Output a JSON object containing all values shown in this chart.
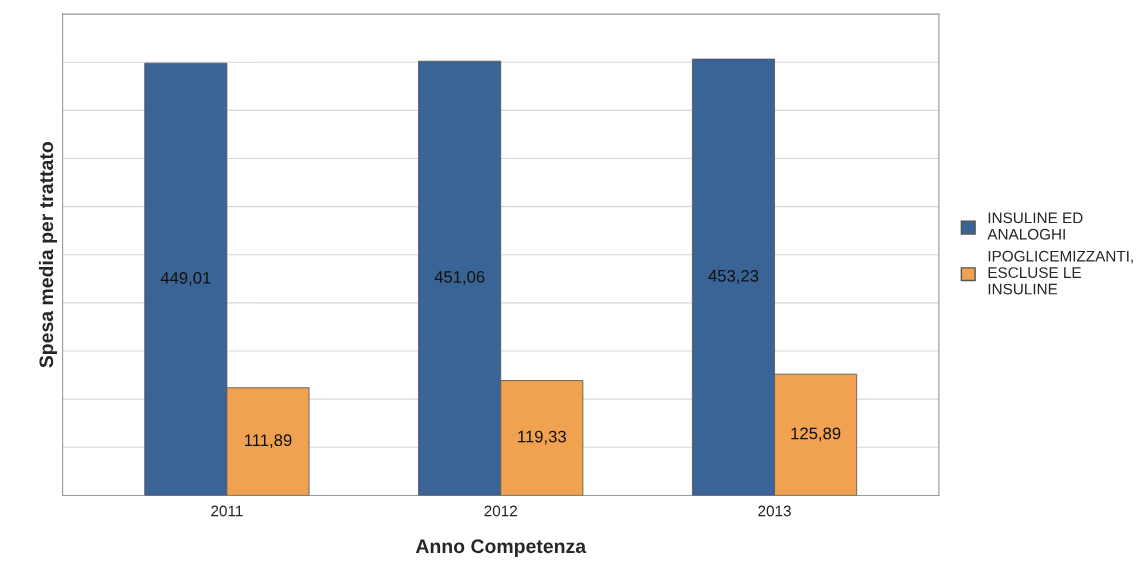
{
  "chart_data": {
    "type": "bar",
    "xlabel": "Anno Competenza",
    "ylabel": "Spesa media per trattato",
    "categories": [
      "2011",
      "2012",
      "2013"
    ],
    "series": [
      {
        "name": "INSULINE ED\nANALOGHI",
        "color": "#3a6496",
        "values": [
          449.01,
          451.06,
          453.23
        ],
        "value_labels": [
          "449,01",
          "451,06",
          "453,23"
        ]
      },
      {
        "name": "IPOGLICEMIZZANTI,\nESCLUSE LE\nINSULINE",
        "color": "#f0a250",
        "values": [
          111.89,
          119.33,
          125.89
        ],
        "value_labels": [
          "111,89",
          "119,33",
          "125,89"
        ]
      }
    ],
    "ylim": [
      0,
      500
    ],
    "yticks": [
      {
        "value": 0,
        "label": null
      },
      {
        "value": 50,
        "label": null
      },
      {
        "value": 100,
        "label": null
      },
      {
        "value": 150,
        "label": null
      },
      {
        "value": 200,
        "label": null
      },
      {
        "value": 250,
        "label": null
      },
      {
        "value": 300,
        "label": null
      },
      {
        "value": 350,
        "label": null
      },
      {
        "value": 400,
        "label": null
      },
      {
        "value": 450,
        "label": null
      }
    ],
    "tick_labels": "x",
    "grid": "y",
    "legend": "right"
  }
}
